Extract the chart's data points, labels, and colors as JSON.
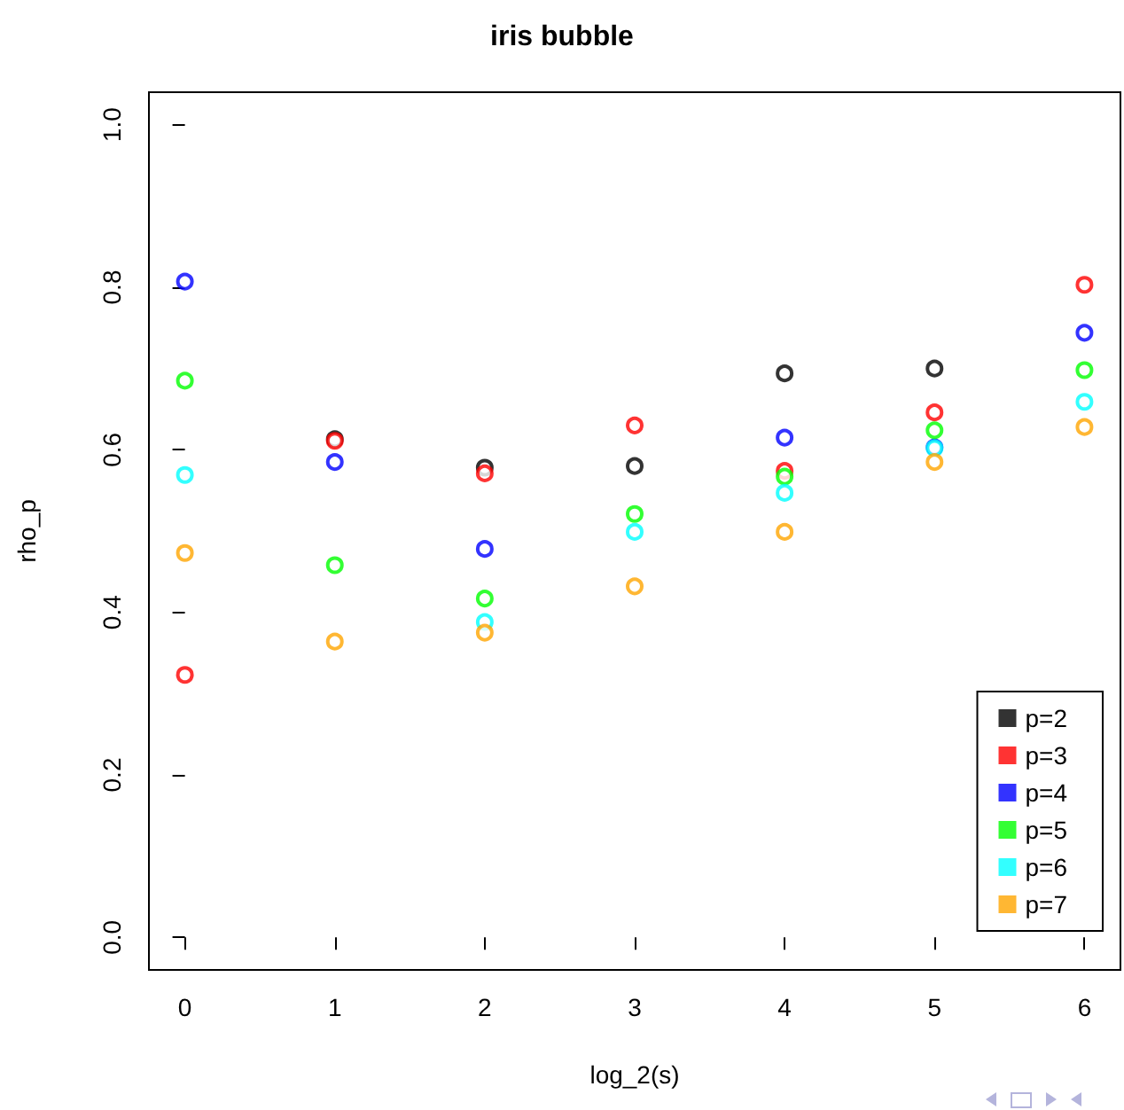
{
  "chart_data": {
    "type": "scatter",
    "title": "iris bubble",
    "xlabel": "log_2(s)",
    "ylabel": "rho_p",
    "x": [
      0,
      1,
      2,
      3,
      4,
      5,
      6
    ],
    "series": [
      {
        "name": "p=2",
        "color": "#000000",
        "values": [
          null,
          0.613,
          0.578,
          0.58,
          0.694,
          0.7,
          null
        ]
      },
      {
        "name": "p=3",
        "color": "#ff0000",
        "values": [
          0.323,
          0.611,
          0.571,
          0.63,
          0.574,
          0.646,
          0.803
        ]
      },
      {
        "name": "p=4",
        "color": "#0000ff",
        "values": [
          0.807,
          0.585,
          0.478,
          null,
          0.615,
          0.603,
          0.744
        ]
      },
      {
        "name": "p=5",
        "color": "#00ff00",
        "values": [
          0.685,
          0.458,
          0.417,
          0.521,
          0.567,
          0.624,
          0.698
        ]
      },
      {
        "name": "p=6",
        "color": "#00ffff",
        "values": [
          0.569,
          null,
          0.388,
          0.499,
          0.547,
          0.602,
          0.659
        ]
      },
      {
        "name": "p=7",
        "color": "#ffa500",
        "values": [
          0.473,
          0.364,
          0.375,
          0.432,
          0.499,
          0.585,
          0.628
        ]
      }
    ],
    "xlim": [
      -0.24,
      6.24
    ],
    "xticks": [
      0,
      1,
      2,
      3,
      4,
      5,
      6
    ],
    "ylim": [
      -0.04,
      1.04
    ],
    "yticks": [
      {
        "value": 0,
        "label": "0.0"
      },
      {
        "value": 0.2,
        "label": "0.2"
      },
      {
        "value": 0.4,
        "label": "0.4"
      },
      {
        "value": 0.6,
        "label": "0.6"
      },
      {
        "value": 0.8,
        "label": "0.8"
      },
      {
        "value": 1,
        "label": "1.0"
      }
    ],
    "grid": false,
    "legend": "bottom right",
    "marker": "circle"
  }
}
